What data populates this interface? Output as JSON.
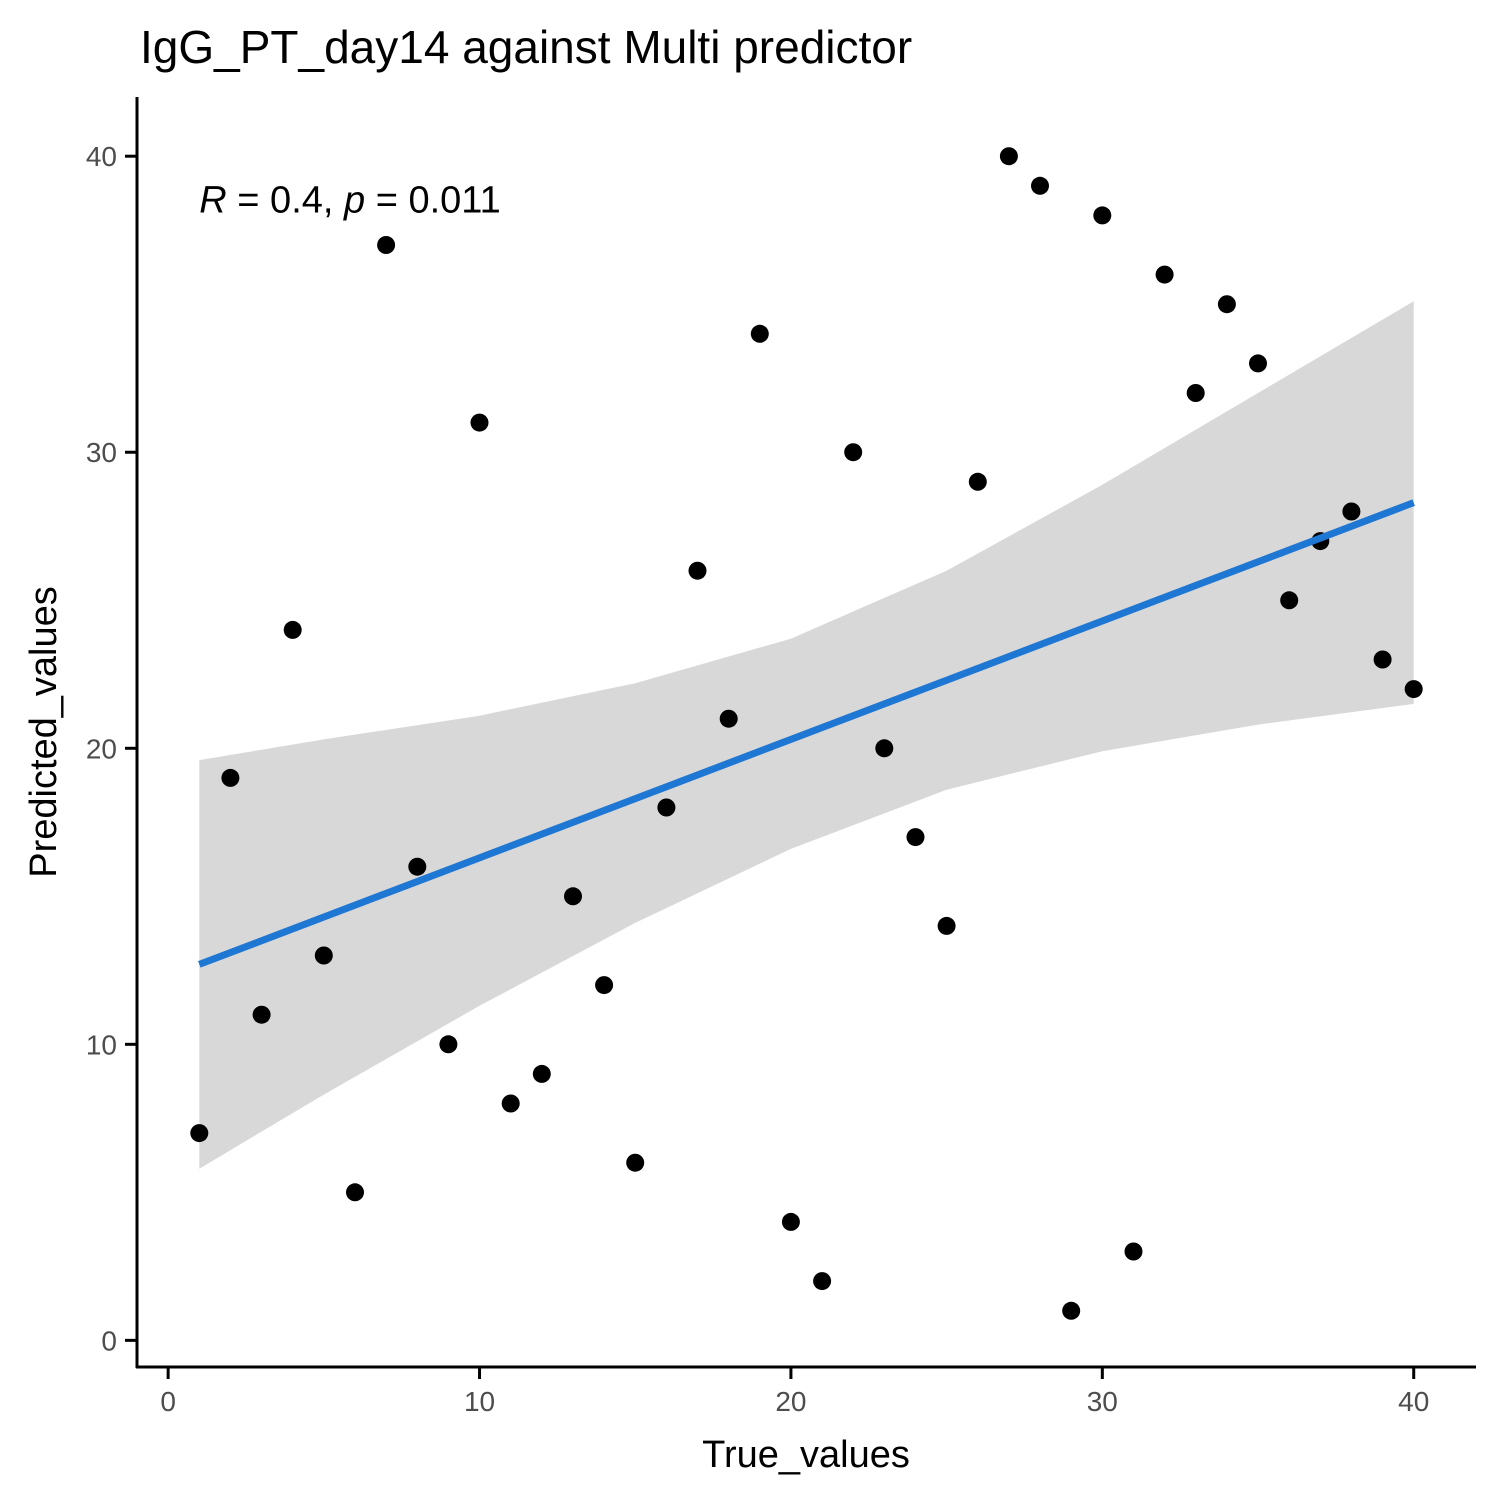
{
  "chart_data": {
    "type": "scatter",
    "title": "IgG_PT_day14 against Multi predictor",
    "xlabel": "True_values",
    "ylabel": "Predicted_values",
    "xlim": [
      -1,
      42
    ],
    "ylim": [
      -0.9,
      42.0
    ],
    "x_ticks": [
      0,
      10,
      20,
      30,
      40
    ],
    "y_ticks": [
      0,
      10,
      20,
      30,
      40
    ],
    "grid": false,
    "annotation": {
      "r_symbol": "R",
      "r_text": " = 0.4, ",
      "p_symbol": "p",
      "p_text": " = 0.011",
      "x": 1,
      "y": 38.5
    },
    "points": [
      {
        "x": 1,
        "y": 7
      },
      {
        "x": 2,
        "y": 19
      },
      {
        "x": 3,
        "y": 11
      },
      {
        "x": 4,
        "y": 24
      },
      {
        "x": 5,
        "y": 13
      },
      {
        "x": 6,
        "y": 5
      },
      {
        "x": 7,
        "y": 37
      },
      {
        "x": 8,
        "y": 16
      },
      {
        "x": 9,
        "y": 10
      },
      {
        "x": 10,
        "y": 31
      },
      {
        "x": 11,
        "y": 8
      },
      {
        "x": 12,
        "y": 9
      },
      {
        "x": 13,
        "y": 15
      },
      {
        "x": 14,
        "y": 12
      },
      {
        "x": 15,
        "y": 6
      },
      {
        "x": 16,
        "y": 18
      },
      {
        "x": 17,
        "y": 26
      },
      {
        "x": 18,
        "y": 21
      },
      {
        "x": 19,
        "y": 34
      },
      {
        "x": 20,
        "y": 4
      },
      {
        "x": 21,
        "y": 2
      },
      {
        "x": 22,
        "y": 30
      },
      {
        "x": 23,
        "y": 20
      },
      {
        "x": 24,
        "y": 17
      },
      {
        "x": 25,
        "y": 14
      },
      {
        "x": 26,
        "y": 29
      },
      {
        "x": 27,
        "y": 40
      },
      {
        "x": 28,
        "y": 39
      },
      {
        "x": 29,
        "y": 1
      },
      {
        "x": 30,
        "y": 38
      },
      {
        "x": 31,
        "y": 3
      },
      {
        "x": 32,
        "y": 36
      },
      {
        "x": 33,
        "y": 32
      },
      {
        "x": 34,
        "y": 35
      },
      {
        "x": 35,
        "y": 33
      },
      {
        "x": 36,
        "y": 25
      },
      {
        "x": 37,
        "y": 27
      },
      {
        "x": 38,
        "y": 28
      },
      {
        "x": 39,
        "y": 23
      },
      {
        "x": 40,
        "y": 22
      }
    ],
    "regression_line": {
      "x": [
        1,
        40
      ],
      "y": [
        12.7,
        28.3
      ]
    },
    "confidence_band": {
      "x": [
        1,
        5,
        10,
        15,
        20,
        25,
        30,
        35,
        40
      ],
      "upper": [
        19.6,
        20.3,
        21.1,
        22.2,
        23.7,
        26.0,
        28.9,
        32.0,
        35.1
      ],
      "lower": [
        5.8,
        8.3,
        11.3,
        14.1,
        16.6,
        18.6,
        19.9,
        20.8,
        21.5
      ]
    },
    "colors": {
      "point": "#000000",
      "line": "#1f77d4",
      "band": "#d6d6d6",
      "axis": "#000000",
      "tick_label": "#4d4d4d"
    }
  }
}
